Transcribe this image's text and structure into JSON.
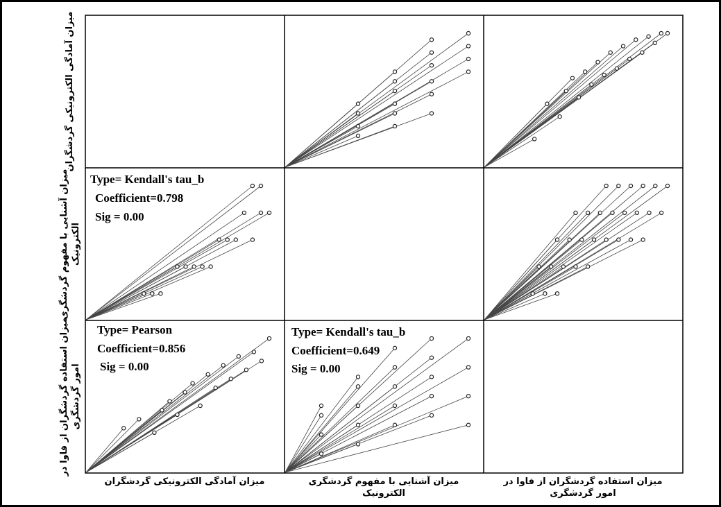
{
  "chart_data": {
    "type": "scatter",
    "title": "",
    "grid": false,
    "variables": [
      {
        "id": "v1",
        "label": "میزان آمادگی الکترونیکی گردشگران",
        "label_lines": [
          "میزان آمادگی الکترونیکی گردشگران"
        ],
        "row_label_lines": [
          "میزان آمادگی الکترونیکی گردشگران"
        ]
      },
      {
        "id": "v2",
        "label": "میزان آشنایی با مفهوم گردشگری الکترونیک",
        "label_lines": [
          "میزان آشنایی با مفهوم گردشگری",
          "الکترونیک"
        ],
        "row_label_lines": [
          "میزان آشنایی با مفهوم گردشگری",
          "الکترونیک"
        ]
      },
      {
        "id": "v3",
        "label": "میزان استفاده گردشگران از فاوا در امور گردشگری",
        "label_lines": [
          "میزان استفاده گردشگران از فاوا در",
          "امور گردشگری"
        ],
        "row_label_lines": [
          "میزان استفاده گردشگران از فاوا در",
          "امور گردشگری"
        ]
      }
    ],
    "panels": [
      {
        "row": 0,
        "col": 1,
        "x_var": "v2",
        "y_var": "v1",
        "x": [
          2,
          2,
          2,
          2,
          3,
          3,
          3,
          3,
          3,
          3,
          4,
          4,
          4,
          4,
          4,
          4,
          5,
          5,
          5,
          5
        ],
        "y": [
          10,
          13,
          17,
          20,
          13,
          17,
          20,
          24,
          27,
          30,
          17,
          23,
          27,
          32,
          36,
          40,
          30,
          34,
          38,
          42
        ]
      },
      {
        "row": 0,
        "col": 2,
        "x_var": "v3",
        "y_var": "v1",
        "x": [
          8,
          10,
          12,
          13,
          14,
          15,
          16,
          17,
          18,
          19,
          20,
          21,
          22,
          23,
          24,
          25,
          26,
          27,
          28,
          29
        ],
        "y": [
          9,
          20,
          16,
          24,
          28,
          22,
          30,
          26,
          33,
          29,
          36,
          31,
          38,
          34,
          40,
          36,
          41,
          39,
          42,
          42
        ]
      },
      {
        "row": 1,
        "col": 0,
        "x_var": "v1",
        "y_var": "v2",
        "annotation": {
          "type_label": "Type= Kendall's tau_b",
          "coefficient_label": "Coefficient=0.798",
          "sig_label": "Sig = 0.00"
        },
        "x": [
          14,
          16,
          18,
          22,
          24,
          26,
          28,
          30,
          32,
          34,
          36,
          40,
          38,
          42,
          44,
          40,
          42
        ],
        "y": [
          1,
          1,
          1,
          2,
          2,
          2,
          2,
          2,
          3,
          3,
          3,
          3,
          4,
          4,
          4,
          5,
          5
        ]
      },
      {
        "row": 1,
        "col": 2,
        "x_var": "v3",
        "y_var": "v2",
        "x": [
          8,
          10,
          12,
          9,
          11,
          13,
          15,
          17,
          12,
          14,
          16,
          18,
          20,
          22,
          24,
          26,
          15,
          17,
          19,
          21,
          23,
          25,
          27,
          29,
          20,
          22,
          24,
          26,
          28,
          30
        ],
        "y": [
          1,
          1,
          1,
          2,
          2,
          2,
          2,
          2,
          3,
          3,
          3,
          3,
          3,
          3,
          3,
          3,
          4,
          4,
          4,
          4,
          4,
          4,
          4,
          4,
          5,
          5,
          5,
          5,
          5,
          5
        ]
      },
      {
        "row": 2,
        "col": 0,
        "x_var": "v1",
        "y_var": "v3",
        "annotation": {
          "type_label": "Type= Pearson",
          "coefficient_label": "Coefficient=0.856",
          "sig_label": "Sig = 0.00"
        },
        "x": [
          10,
          14,
          18,
          20,
          22,
          24,
          26,
          28,
          30,
          32,
          34,
          36,
          38,
          40,
          42,
          44,
          46,
          48
        ],
        "y": [
          10,
          12,
          9,
          14,
          16,
          13,
          18,
          20,
          15,
          22,
          19,
          24,
          21,
          26,
          23,
          27,
          25,
          30
        ]
      },
      {
        "row": 2,
        "col": 1,
        "x_var": "v2",
        "y_var": "v3",
        "annotation": {
          "type_label": "Type= Kendall's tau_b",
          "coefficient_label": "Coefficient=0.649",
          "sig_label": "Sig = 0.00"
        },
        "x": [
          1,
          1,
          1,
          1,
          2,
          2,
          2,
          2,
          2,
          3,
          3,
          3,
          3,
          3,
          4,
          4,
          4,
          4,
          4,
          5,
          5,
          5,
          5
        ],
        "y": [
          4,
          8,
          12,
          14,
          6,
          10,
          14,
          18,
          20,
          10,
          14,
          18,
          22,
          26,
          12,
          16,
          20,
          24,
          28,
          10,
          16,
          22,
          28
        ]
      }
    ]
  }
}
